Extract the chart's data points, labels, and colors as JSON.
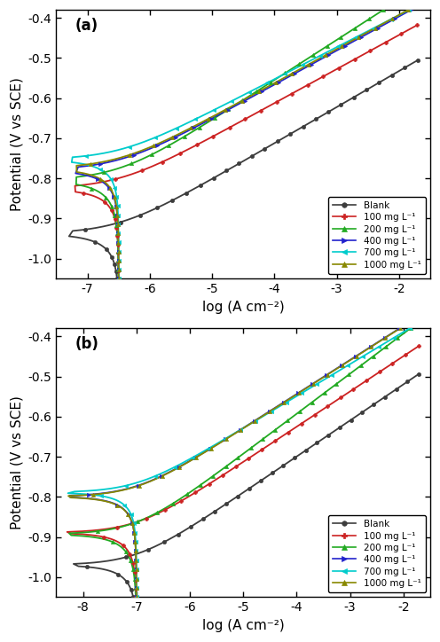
{
  "panel_a": {
    "label": "(a)",
    "xlim": [
      -7.5,
      -1.5
    ],
    "xticks": [
      -7,
      -6,
      -5,
      -4,
      -3,
      -2
    ],
    "ylim": [
      -1.05,
      -0.38
    ],
    "yticks": [
      -1.0,
      -0.9,
      -0.8,
      -0.7,
      -0.6,
      -0.5,
      -0.4
    ],
    "xlabel": "log (A cm⁻²)",
    "ylabel": "Potential (V vs SCE)",
    "legend_labels": [
      "Blank",
      "100 mg L⁻¹",
      "200 mg L⁻¹",
      "400 mg L⁻¹",
      "700 mg L⁻¹",
      "1000 mg L⁻¹"
    ],
    "colors": [
      "#3d3d3d",
      "#cc2222",
      "#22aa22",
      "#2222cc",
      "#00cccc",
      "#888800"
    ],
    "markers": [
      "o",
      "P",
      "^",
      ">",
      "<",
      "^"
    ],
    "curves": [
      {
        "Ecorr": -0.735,
        "log_icorr": -4.25,
        "ba": 0.09,
        "bc": 0.13,
        "il_cat": -6.5,
        "xmin": -7.3,
        "xmax": -1.7
      },
      {
        "Ecorr": -0.685,
        "log_icorr": -4.85,
        "ba": 0.085,
        "bc": 0.1,
        "il_cat": -6.5,
        "xmin": -7.2,
        "xmax": -1.7
      },
      {
        "Ecorr": -0.66,
        "log_icorr": -5.05,
        "ba": 0.1,
        "bc": 0.1,
        "il_cat": -6.5,
        "xmin": -7.2,
        "xmax": -1.7
      },
      {
        "Ecorr": -0.66,
        "log_icorr": -5.1,
        "ba": 0.085,
        "bc": 0.095,
        "il_cat": -6.5,
        "xmin": -7.2,
        "xmax": -1.7
      },
      {
        "Ecorr": -0.645,
        "log_icorr": -5.15,
        "ba": 0.08,
        "bc": 0.09,
        "il_cat": -6.5,
        "xmin": -7.3,
        "xmax": -1.7
      },
      {
        "Ecorr": -0.652,
        "log_icorr": -5.05,
        "ba": 0.085,
        "bc": 0.1,
        "il_cat": -6.5,
        "xmin": -7.2,
        "xmax": -1.7
      }
    ]
  },
  "panel_b": {
    "label": "(b)",
    "xlim": [
      -8.5,
      -1.5
    ],
    "xticks": [
      -8,
      -7,
      -6,
      -5,
      -4,
      -3,
      -2
    ],
    "ylim": [
      -1.05,
      -0.38
    ],
    "yticks": [
      -1.0,
      -0.9,
      -0.8,
      -0.7,
      -0.6,
      -0.5,
      -0.4
    ],
    "xlabel": "log (A cm⁻²)",
    "ylabel": "Potential (V vs SCE)",
    "legend_labels": [
      "Blank",
      "100 mg L⁻¹",
      "200 mg L⁻¹",
      "400 mg L⁻¹",
      "700 mg L⁻¹",
      "1000 mg L⁻¹"
    ],
    "colors": [
      "#3d3d3d",
      "#cc2222",
      "#22aa22",
      "#2222cc",
      "#00cccc",
      "#888800"
    ],
    "markers": [
      "o",
      "P",
      "^",
      ">",
      "<",
      "^"
    ],
    "curves": [
      {
        "Ecorr": -0.74,
        "log_icorr": -4.45,
        "ba": 0.09,
        "bc": 0.13,
        "il_cat": -7.0,
        "xmin": -8.2,
        "xmax": -1.7
      },
      {
        "Ecorr": -0.7,
        "log_icorr": -4.85,
        "ba": 0.088,
        "bc": 0.1,
        "il_cat": -7.0,
        "xmin": -8.3,
        "xmax": -1.7
      },
      {
        "Ecorr": -0.698,
        "log_icorr": -5.05,
        "ba": 0.1,
        "bc": 0.1,
        "il_cat": -7.0,
        "xmin": -8.3,
        "xmax": -1.7
      },
      {
        "Ecorr": -0.65,
        "log_icorr": -5.25,
        "ba": 0.085,
        "bc": 0.095,
        "il_cat": -7.0,
        "xmin": -8.3,
        "xmax": -1.7
      },
      {
        "Ecorr": -0.653,
        "log_icorr": -5.3,
        "ba": 0.08,
        "bc": 0.09,
        "il_cat": -7.0,
        "xmin": -8.3,
        "xmax": -1.7
      },
      {
        "Ecorr": -0.638,
        "log_icorr": -5.1,
        "ba": 0.085,
        "bc": 0.1,
        "il_cat": -7.0,
        "xmin": -8.3,
        "xmax": -1.7
      }
    ]
  }
}
